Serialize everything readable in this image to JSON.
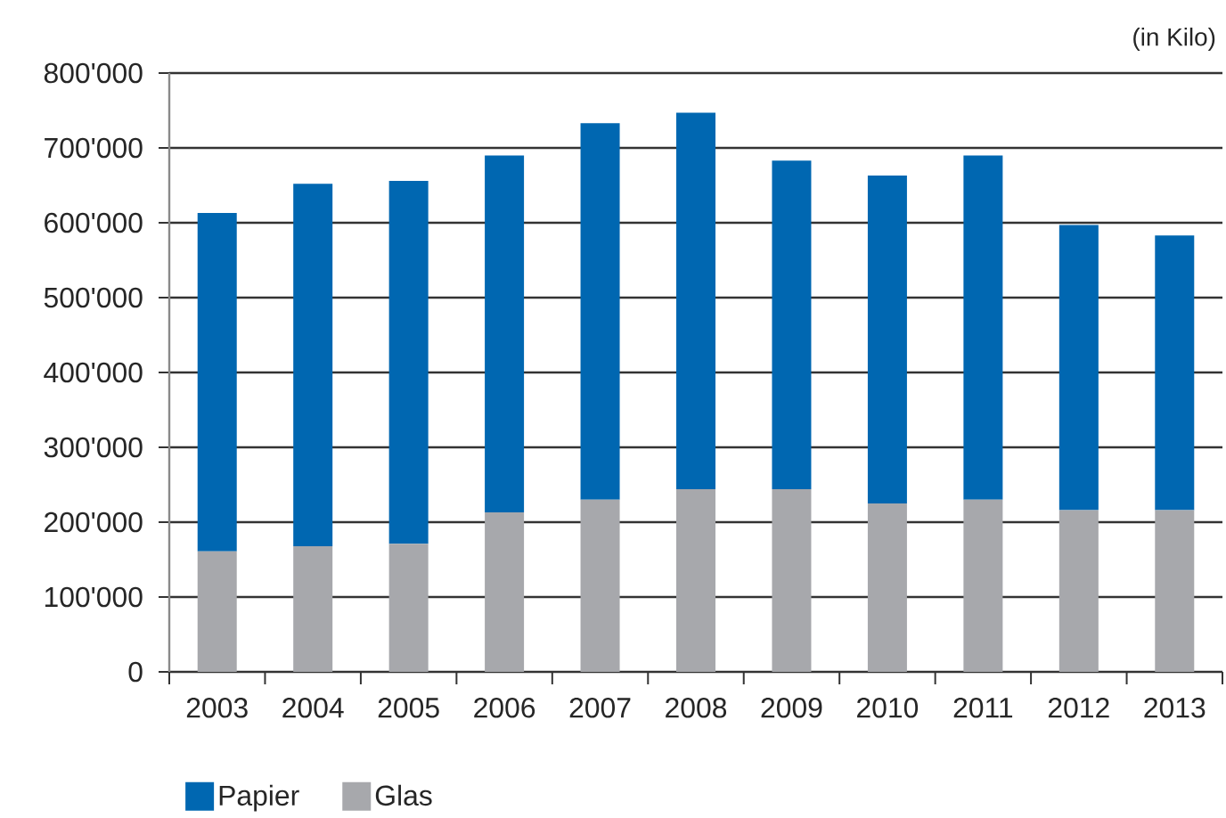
{
  "chart_data": {
    "type": "bar",
    "stacked": true,
    "ylabel": "(in Kilo)",
    "categories": [
      "2003",
      "2004",
      "2005",
      "2006",
      "2007",
      "2008",
      "2009",
      "2010",
      "2011",
      "2012",
      "2013"
    ],
    "series": [
      {
        "name": "Glas",
        "color": "#a7a8ac",
        "values": [
          161000,
          168000,
          171000,
          213000,
          230000,
          244000,
          244000,
          225000,
          230000,
          216000,
          216000
        ]
      },
      {
        "name": "Papier",
        "color": "#0067b1",
        "values": [
          452000,
          484000,
          485000,
          477000,
          503000,
          503000,
          439000,
          438000,
          460000,
          381000,
          367000
        ]
      }
    ],
    "ylim": [
      0,
      800000
    ],
    "yticks": [
      0,
      {
        "value": 100000,
        "label": "100'000"
      },
      {
        "value": 200000,
        "label": "200'000"
      },
      {
        "value": 300000,
        "label": "300'000"
      },
      {
        "value": 400000,
        "label": "400'000"
      },
      {
        "value": 500000,
        "label": "500'000"
      },
      {
        "value": 600000,
        "label": "600'000"
      },
      {
        "value": 700000,
        "label": "700'000"
      },
      {
        "value": 800000,
        "label": "800'000"
      }
    ],
    "grid": "y",
    "legend": "bottom left"
  }
}
